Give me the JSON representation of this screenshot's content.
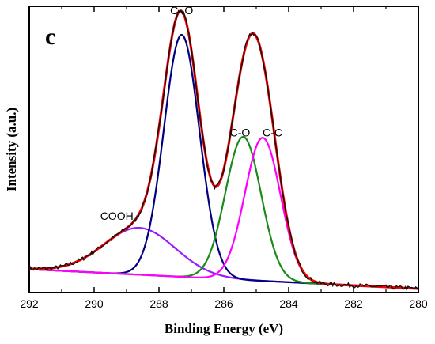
{
  "chart_data": {
    "type": "line",
    "panel_label": "c",
    "xlabel": "Binding Energy (eV)",
    "ylabel": "Intensity (a.u.)",
    "xlim": [
      292,
      280
    ],
    "x_reversed": true,
    "y_ticks_shown": false,
    "ylim": [
      0,
      110
    ],
    "grid": false,
    "x_ticks": [
      "292",
      "290",
      "288",
      "286",
      "284",
      "282",
      "280"
    ],
    "x_tick_values": [
      292,
      290,
      288,
      286,
      284,
      282,
      280
    ],
    "baseline": {
      "at_292": 9,
      "at_280": 1.5
    },
    "components": [
      {
        "name": "COOH",
        "center": 288.6,
        "height": 18,
        "sigma": 1.1,
        "color": "#9a1cff"
      },
      {
        "name": "C=O",
        "center": 287.3,
        "height": 93,
        "sigma": 0.55,
        "color": "#000080"
      },
      {
        "name": "C-O",
        "center": 285.4,
        "height": 55,
        "sigma": 0.55,
        "color": "#1a8a1a"
      },
      {
        "name": "C-C",
        "center": 284.8,
        "height": 55,
        "sigma": 0.55,
        "color": "#ff00ff"
      }
    ],
    "series": [
      {
        "role": "envelope",
        "color": "#ff0000"
      },
      {
        "role": "raw",
        "color": "#111111"
      }
    ],
    "annotations": [
      {
        "text": "C=O",
        "x": 287.3,
        "y": 107
      },
      {
        "text": "C-O",
        "x": 285.5,
        "y": 60
      },
      {
        "text": "C-C",
        "x": 284.5,
        "y": 60
      },
      {
        "text": "COOH",
        "x": 289.3,
        "y": 28
      }
    ]
  }
}
